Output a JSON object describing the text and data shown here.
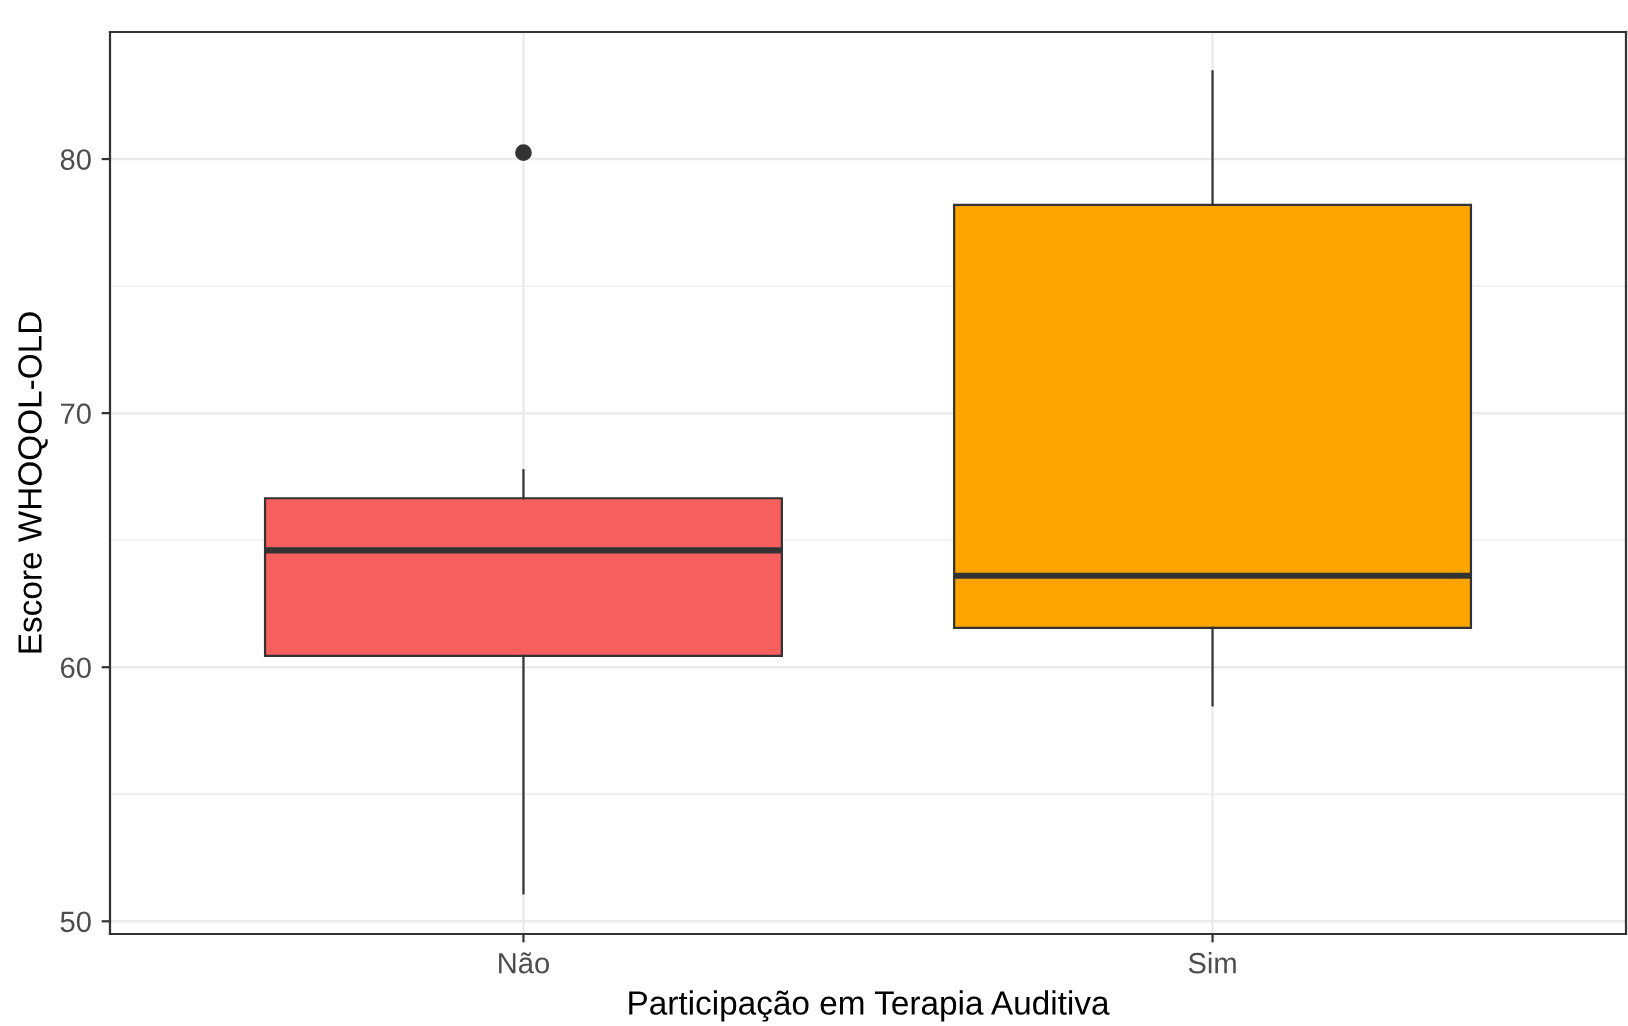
{
  "chart_data": {
    "type": "box",
    "xlabel": "Participação em Terapia Auditiva",
    "ylabel": "Escore WHOQOL-OLD",
    "categories": [
      "Não",
      "Sim"
    ],
    "colors": [
      "#f8605f",
      "#ffa500"
    ],
    "boxes": [
      {
        "low": 51.1,
        "q1": 60.45,
        "median": 64.6,
        "q3": 66.65,
        "high": 67.75,
        "outliers": [
          80.25
        ]
      },
      {
        "low": 58.5,
        "q1": 61.55,
        "median": 63.6,
        "q3": 78.2,
        "high": 83.45
      }
    ],
    "ylim": [
      49.5,
      85
    ],
    "yticks": [
      50,
      {
        "value": 55,
        "label": null
      },
      60,
      {
        "value": 65,
        "label": null
      },
      70,
      {
        "value": 75,
        "label": null
      },
      80
    ],
    "grid": true
  }
}
